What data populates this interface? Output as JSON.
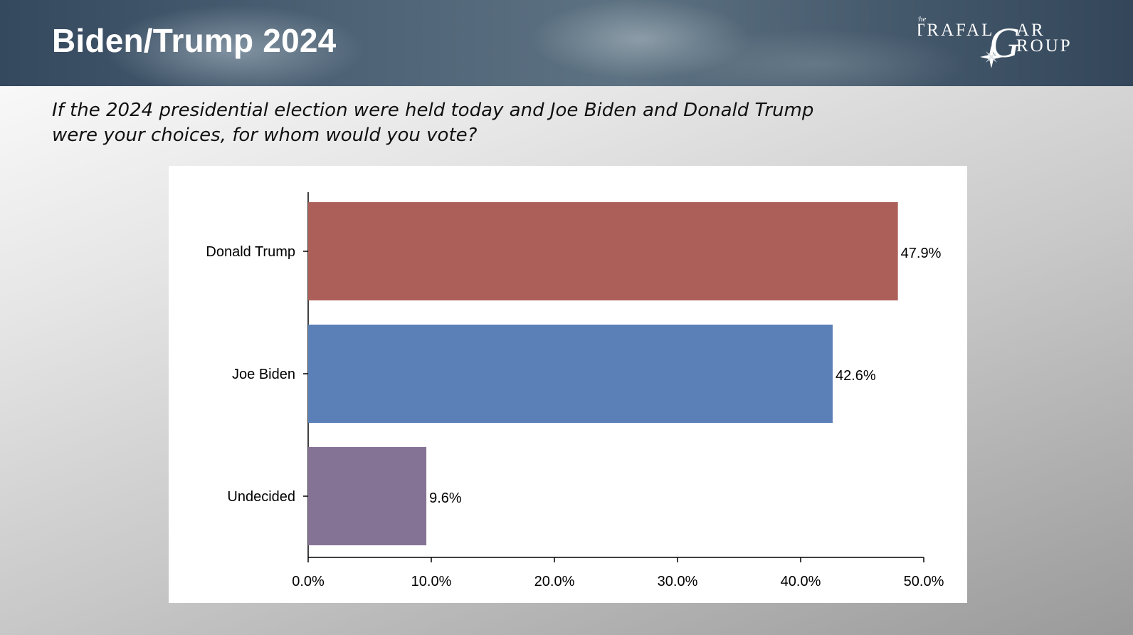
{
  "header": {
    "title": "Biden/Trump 2024",
    "logo_the": "the",
    "logo_line1": "TRAFAL",
    "logo_g": "G",
    "logo_ar": "AR",
    "logo_line2": "ROUP"
  },
  "question": "If the 2024 presidential election were held today and Joe Biden and Donald Trump were your choices, for whom would you vote?",
  "colors": {
    "trump": "#ac5f58",
    "biden": "#5b80b8",
    "undecided": "#857396"
  },
  "chart_data": {
    "type": "bar",
    "orientation": "horizontal",
    "categories": [
      "Donald Trump",
      "Joe Biden",
      "Undecided"
    ],
    "values": [
      47.9,
      42.6,
      9.6
    ],
    "value_labels": [
      "47.9%",
      "42.6%",
      "9.6%"
    ],
    "bar_colors": [
      "#ac5f58",
      "#5b80b8",
      "#857396"
    ],
    "xlim": [
      0,
      50
    ],
    "xticks": [
      0,
      10,
      20,
      30,
      40,
      50
    ],
    "xtick_labels": [
      "0.0%",
      "10.0%",
      "20.0%",
      "30.0%",
      "40.0%",
      "50.0%"
    ],
    "grid": false,
    "title": "",
    "xlabel": "",
    "ylabel": ""
  }
}
